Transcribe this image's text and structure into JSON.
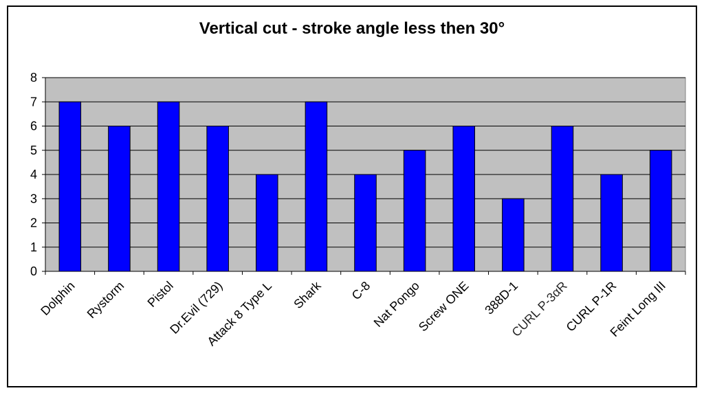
{
  "chart_data": {
    "type": "bar",
    "title": "Vertical cut - stroke angle less then 30°",
    "xlabel": "",
    "ylabel": "",
    "ylim": [
      0,
      8
    ],
    "yticks": [
      0,
      1,
      2,
      3,
      4,
      5,
      6,
      7,
      8
    ],
    "grid": true,
    "categories": [
      "Dolphin",
      "Rystorm",
      "Pistol",
      "Dr.Evil (729)",
      "Attack 8 Type L",
      "Shark",
      "C-8",
      "Nat Pongo",
      "Screw ONE",
      "388D-1",
      "CURL P-3αR",
      "CURL P-1R",
      "Feint Long III"
    ],
    "values": [
      7,
      6,
      7,
      6,
      4,
      7,
      4,
      5,
      6,
      3,
      6,
      4,
      5
    ],
    "colors": {
      "bar": "#0000ff",
      "plot_background": "#c0c0c0",
      "highlight_label": "#2b3fb0"
    },
    "highlighted_category": "CURL P-3αR"
  }
}
